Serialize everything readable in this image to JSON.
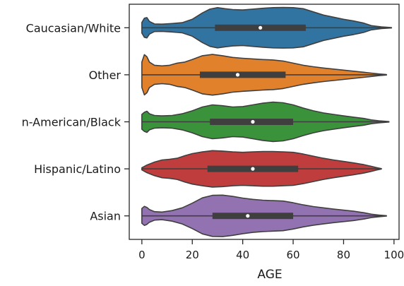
{
  "chart_data": {
    "type": "violin",
    "orientation": "horizontal",
    "xlabel": "AGE",
    "ylabel": "",
    "xlim": [
      -5,
      102
    ],
    "xticks": [
      0,
      20,
      40,
      60,
      80,
      100
    ],
    "categories": [
      "Caucasian/White",
      "Other",
      "African-American/Black",
      "Hispanic/Latino",
      "Asian"
    ],
    "display_labels": [
      "Caucasian/White",
      "Other",
      "n-American/Black",
      "Hispanic/Latino",
      "Asian"
    ],
    "series": [
      {
        "category": "Caucasian/White",
        "color": "#3274a1",
        "min": 0,
        "q1": 29,
        "median": 47,
        "q3": 65,
        "whisker_high": 99,
        "density": [
          [
            0,
            0.25
          ],
          [
            1,
            0.45
          ],
          [
            2,
            0.48
          ],
          [
            3,
            0.3
          ],
          [
            5,
            0.18
          ],
          [
            8,
            0.17
          ],
          [
            12,
            0.2
          ],
          [
            16,
            0.24
          ],
          [
            20,
            0.4
          ],
          [
            24,
            0.7
          ],
          [
            27,
            0.88
          ],
          [
            30,
            0.95
          ],
          [
            33,
            0.9
          ],
          [
            36,
            0.86
          ],
          [
            40,
            0.84
          ],
          [
            44,
            0.88
          ],
          [
            48,
            0.92
          ],
          [
            52,
            0.95
          ],
          [
            56,
            0.96
          ],
          [
            60,
            0.95
          ],
          [
            64,
            0.9
          ],
          [
            68,
            0.75
          ],
          [
            72,
            0.6
          ],
          [
            76,
            0.5
          ],
          [
            80,
            0.4
          ],
          [
            84,
            0.32
          ],
          [
            88,
            0.22
          ],
          [
            91,
            0.1
          ],
          [
            95,
            0.04
          ],
          [
            99,
            0.01
          ]
        ]
      },
      {
        "category": "Other",
        "color": "#e1812c",
        "min": 0,
        "q1": 23,
        "median": 38,
        "q3": 57,
        "whisker_high": 97,
        "density": [
          [
            0,
            0.6
          ],
          [
            1,
            0.95
          ],
          [
            2,
            0.85
          ],
          [
            3,
            0.6
          ],
          [
            5,
            0.45
          ],
          [
            8,
            0.42
          ],
          [
            11,
            0.45
          ],
          [
            14,
            0.55
          ],
          [
            17,
            0.6
          ],
          [
            20,
            0.72
          ],
          [
            24,
            0.9
          ],
          [
            28,
            0.96
          ],
          [
            32,
            0.9
          ],
          [
            36,
            0.82
          ],
          [
            40,
            0.78
          ],
          [
            44,
            0.75
          ],
          [
            48,
            0.72
          ],
          [
            52,
            0.7
          ],
          [
            56,
            0.65
          ],
          [
            60,
            0.55
          ],
          [
            64,
            0.45
          ],
          [
            68,
            0.38
          ],
          [
            72,
            0.32
          ],
          [
            76,
            0.27
          ],
          [
            80,
            0.22
          ],
          [
            84,
            0.17
          ],
          [
            88,
            0.12
          ],
          [
            91,
            0.08
          ],
          [
            94,
            0.04
          ],
          [
            97,
            0.01
          ]
        ]
      },
      {
        "category": "African-American/Black",
        "color": "#3a923a",
        "min": 0,
        "q1": 27,
        "median": 44,
        "q3": 60,
        "whisker_high": 98,
        "density": [
          [
            0,
            0.35
          ],
          [
            1,
            0.45
          ],
          [
            2,
            0.5
          ],
          [
            3,
            0.38
          ],
          [
            5,
            0.3
          ],
          [
            8,
            0.28
          ],
          [
            12,
            0.3
          ],
          [
            16,
            0.38
          ],
          [
            20,
            0.52
          ],
          [
            24,
            0.7
          ],
          [
            28,
            0.8
          ],
          [
            32,
            0.76
          ],
          [
            36,
            0.7
          ],
          [
            40,
            0.72
          ],
          [
            44,
            0.8
          ],
          [
            48,
            0.88
          ],
          [
            52,
            0.93
          ],
          [
            56,
            0.9
          ],
          [
            60,
            0.8
          ],
          [
            64,
            0.65
          ],
          [
            68,
            0.52
          ],
          [
            72,
            0.42
          ],
          [
            76,
            0.35
          ],
          [
            80,
            0.28
          ],
          [
            84,
            0.22
          ],
          [
            88,
            0.16
          ],
          [
            91,
            0.09
          ],
          [
            94,
            0.05
          ],
          [
            98,
            0.01
          ]
        ]
      },
      {
        "category": "Hispanic/Latino",
        "color": "#c03d3e",
        "min": 0,
        "q1": 26,
        "median": 44,
        "q3": 62,
        "whisker_high": 95,
        "density": [
          [
            0,
            0.05
          ],
          [
            2,
            0.18
          ],
          [
            5,
            0.32
          ],
          [
            8,
            0.42
          ],
          [
            11,
            0.45
          ],
          [
            14,
            0.5
          ],
          [
            17,
            0.62
          ],
          [
            20,
            0.72
          ],
          [
            24,
            0.8
          ],
          [
            28,
            0.86
          ],
          [
            32,
            0.84
          ],
          [
            36,
            0.8
          ],
          [
            40,
            0.78
          ],
          [
            44,
            0.8
          ],
          [
            48,
            0.82
          ],
          [
            52,
            0.82
          ],
          [
            56,
            0.8
          ],
          [
            60,
            0.78
          ],
          [
            64,
            0.7
          ],
          [
            68,
            0.6
          ],
          [
            72,
            0.5
          ],
          [
            76,
            0.42
          ],
          [
            80,
            0.35
          ],
          [
            84,
            0.28
          ],
          [
            88,
            0.2
          ],
          [
            91,
            0.12
          ],
          [
            93,
            0.06
          ],
          [
            95,
            0.01
          ]
        ]
      },
      {
        "category": "Asian",
        "color": "#9372b2",
        "min": 0,
        "q1": 28,
        "median": 42,
        "q3": 60,
        "whisker_high": 97,
        "density": [
          [
            0,
            0.35
          ],
          [
            1,
            0.45
          ],
          [
            2,
            0.4
          ],
          [
            3,
            0.3
          ],
          [
            5,
            0.2
          ],
          [
            8,
            0.18
          ],
          [
            12,
            0.25
          ],
          [
            16,
            0.38
          ],
          [
            20,
            0.6
          ],
          [
            24,
            0.85
          ],
          [
            28,
            0.97
          ],
          [
            32,
            0.98
          ],
          [
            36,
            0.92
          ],
          [
            40,
            0.84
          ],
          [
            44,
            0.78
          ],
          [
            48,
            0.74
          ],
          [
            52,
            0.72
          ],
          [
            56,
            0.7
          ],
          [
            60,
            0.62
          ],
          [
            64,
            0.52
          ],
          [
            68,
            0.44
          ],
          [
            72,
            0.38
          ],
          [
            76,
            0.32
          ],
          [
            80,
            0.27
          ],
          [
            84,
            0.22
          ],
          [
            88,
            0.15
          ],
          [
            91,
            0.08
          ],
          [
            94,
            0.04
          ],
          [
            97,
            0.01
          ]
        ]
      }
    ]
  }
}
